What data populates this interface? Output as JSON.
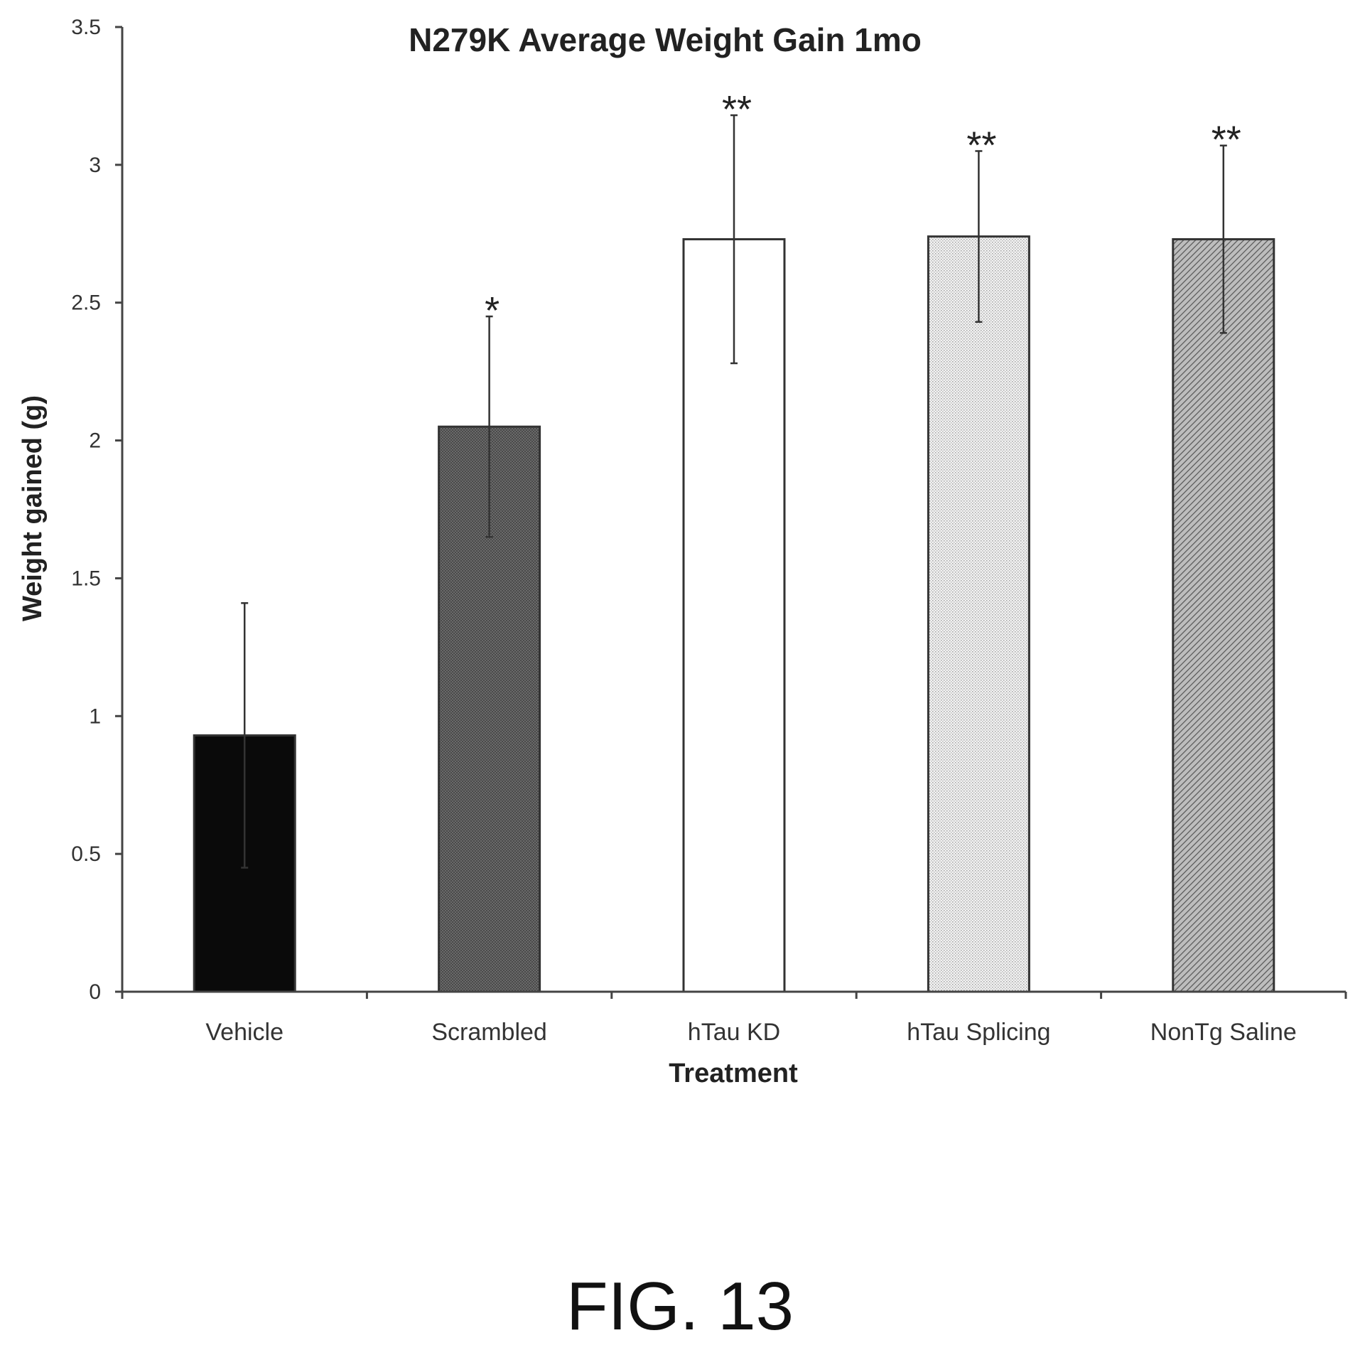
{
  "chart_data": {
    "type": "bar",
    "title": "N279K Average Weight Gain 1mo",
    "xlabel": "Treatment",
    "ylabel": "Weight gained (g)",
    "ylim": [
      0,
      3.5
    ],
    "yticks": [
      "0",
      "0.5",
      "1",
      "1.5",
      "2",
      "2.5",
      "3",
      "3.5"
    ],
    "grid": false,
    "categories": [
      "Vehicle",
      "Scrambled",
      "hTau KD",
      "hTau Splicing",
      "NonTg Saline"
    ],
    "values": [
      0.93,
      2.05,
      2.73,
      2.74,
      2.73
    ],
    "error": [
      0.48,
      0.4,
      0.45,
      0.31,
      0.34
    ],
    "significance": [
      "",
      "*",
      "**",
      "**",
      "**"
    ],
    "bar_fills": [
      "solid-black",
      "dense-dark-gray",
      "white",
      "light-dotted-gray",
      "diagonal-hatch-gray"
    ]
  },
  "figure_label": "FIG. 13"
}
